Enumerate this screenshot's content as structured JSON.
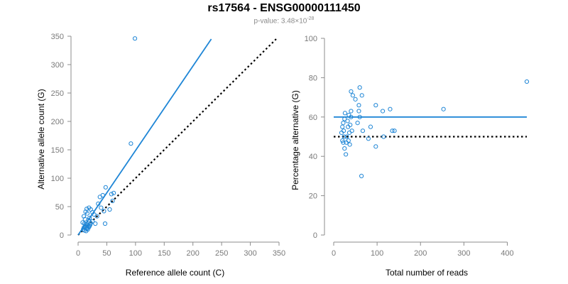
{
  "header": {
    "title": "rs17564 - ENSG00000111450",
    "pvalue_label": "p-value: 3.48×10",
    "pvalue_exp": "-28"
  },
  "colors": {
    "points": "#1f86d6",
    "fit": "#1f86d6",
    "reference": "#000000",
    "axis": "#8c8c8c"
  },
  "chart_data": [
    {
      "type": "scatter",
      "xlabel": "Reference allele count (C)",
      "ylabel": "Alternative allele count (G)",
      "xlim": [
        0,
        350
      ],
      "ylim": [
        0,
        350
      ],
      "xticks": [
        0,
        50,
        100,
        150,
        200,
        250,
        300,
        350
      ],
      "yticks": [
        0,
        50,
        100,
        150,
        200,
        250,
        300,
        350
      ],
      "grid": false,
      "points": [
        [
          99,
          346
        ],
        [
          92,
          161
        ],
        [
          48,
          84
        ],
        [
          43,
          70
        ],
        [
          38,
          67
        ],
        [
          62,
          74
        ],
        [
          58,
          72
        ],
        [
          15,
          46
        ],
        [
          19,
          48
        ],
        [
          22,
          45
        ],
        [
          13,
          41
        ],
        [
          16,
          38
        ],
        [
          10,
          33
        ],
        [
          25,
          40
        ],
        [
          28,
          36
        ],
        [
          33,
          33
        ],
        [
          20,
          30
        ],
        [
          12,
          28
        ],
        [
          18,
          26
        ],
        [
          55,
          45
        ],
        [
          45,
          42
        ],
        [
          60,
          60
        ],
        [
          47,
          20
        ],
        [
          35,
          55
        ],
        [
          40,
          48
        ],
        [
          8,
          22
        ],
        [
          11,
          20
        ],
        [
          14,
          19
        ],
        [
          16,
          18
        ],
        [
          18,
          17
        ],
        [
          20,
          16
        ],
        [
          12,
          15
        ],
        [
          10,
          13
        ],
        [
          13,
          12
        ],
        [
          15,
          11
        ],
        [
          17,
          10
        ],
        [
          19,
          14
        ],
        [
          22,
          21
        ],
        [
          25,
          24
        ],
        [
          30,
          20
        ],
        [
          9,
          10
        ],
        [
          11,
          8
        ],
        [
          14,
          7
        ],
        [
          16,
          12
        ],
        [
          21,
          18
        ]
      ],
      "fit_line": {
        "x": [
          0,
          232
        ],
        "y": [
          0,
          345
        ]
      },
      "reference_line": {
        "x": [
          0,
          345
        ],
        "y": [
          0,
          345
        ]
      }
    },
    {
      "type": "scatter",
      "xlabel": "Total number of reads",
      "ylabel": "Percentage alternative (G)",
      "xlim": [
        0,
        445
      ],
      "ylim": [
        0,
        100
      ],
      "xticks": [
        0,
        100,
        200,
        300,
        400
      ],
      "yticks": [
        0,
        20,
        40,
        60,
        80,
        100
      ],
      "grid": false,
      "points": [
        [
          445,
          78
        ],
        [
          253,
          64
        ],
        [
          130,
          64
        ],
        [
          97,
          66
        ],
        [
          113,
          63
        ],
        [
          60,
          75
        ],
        [
          65,
          71
        ],
        [
          40,
          73
        ],
        [
          44,
          71
        ],
        [
          50,
          69
        ],
        [
          58,
          66
        ],
        [
          58,
          63
        ],
        [
          40,
          63
        ],
        [
          35,
          61
        ],
        [
          60,
          60
        ],
        [
          55,
          57
        ],
        [
          85,
          55
        ],
        [
          67,
          53
        ],
        [
          135,
          53
        ],
        [
          140,
          53
        ],
        [
          115,
          50
        ],
        [
          80,
          49
        ],
        [
          97,
          45
        ],
        [
          64,
          30
        ],
        [
          26,
          62
        ],
        [
          25,
          59
        ],
        [
          22,
          57
        ],
        [
          20,
          55
        ],
        [
          23,
          53
        ],
        [
          18,
          52
        ],
        [
          24,
          50
        ],
        [
          20,
          48
        ],
        [
          22,
          47
        ],
        [
          25,
          44
        ],
        [
          28,
          41
        ],
        [
          30,
          50
        ],
        [
          34,
          48
        ],
        [
          36,
          52
        ],
        [
          38,
          56
        ],
        [
          32,
          58
        ],
        [
          40,
          60
        ],
        [
          37,
          46
        ],
        [
          42,
          53
        ],
        [
          29,
          47
        ],
        [
          33,
          55
        ]
      ],
      "fit_line": {
        "x": [
          0,
          445
        ],
        "y": [
          60,
          60
        ]
      },
      "reference_line": {
        "x": [
          0,
          445
        ],
        "y": [
          50,
          50
        ]
      }
    }
  ]
}
